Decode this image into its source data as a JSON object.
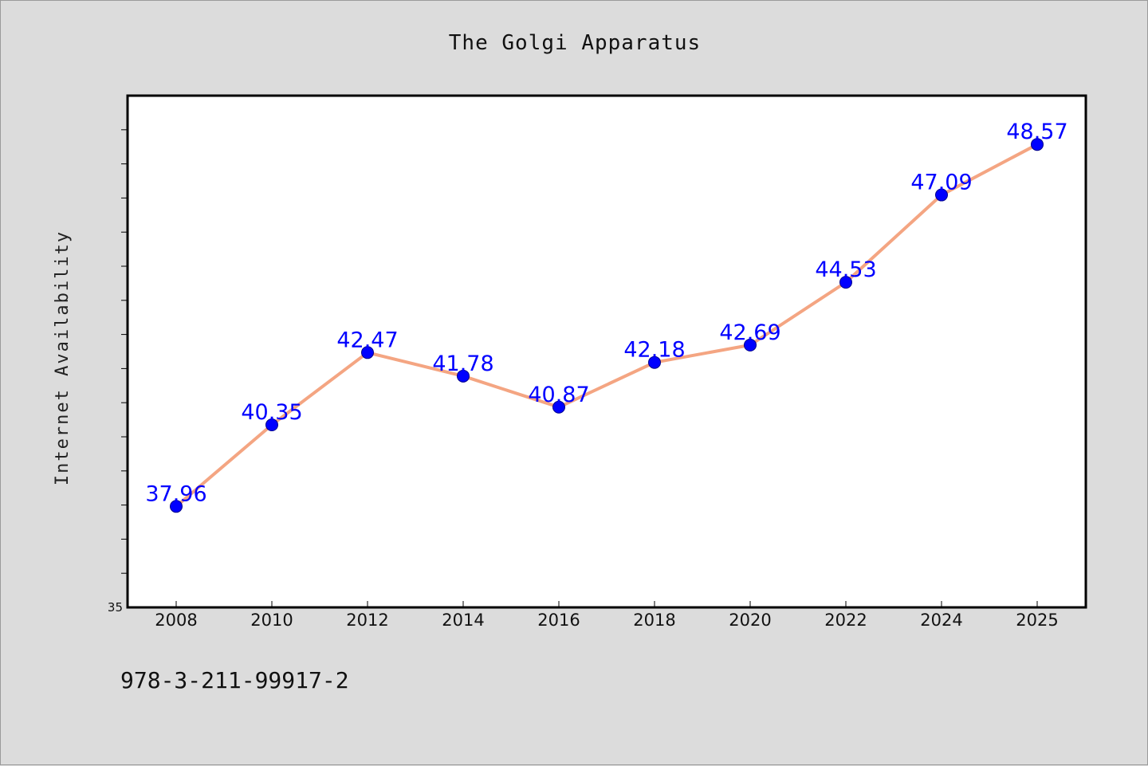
{
  "chart_data": {
    "type": "line",
    "title": "The Golgi Apparatus",
    "xlabel": "",
    "ylabel": "Internet Availability",
    "categories": [
      "2008",
      "2010",
      "2012",
      "2014",
      "2016",
      "2018",
      "2020",
      "2022",
      "2024",
      "2025"
    ],
    "series": [
      {
        "values": [
          37.96,
          40.35,
          42.47,
          41.78,
          40.87,
          42.18,
          42.69,
          44.53,
          47.09,
          48.57
        ]
      }
    ],
    "data_labels": [
      "37.96",
      "40.35",
      "42.47",
      "41.78",
      "40.87",
      "42.18",
      "42.69",
      "44.53",
      "47.09",
      "48.57"
    ],
    "ylim": [
      35,
      50
    ],
    "y_tick_label": "35",
    "y_minor_step": 1,
    "grid": false,
    "legend": "none"
  },
  "footer": {
    "isbn": "978-3-211-99917-2"
  },
  "colors": {
    "background": "#dcdcdc",
    "plot_background": "#ffffff",
    "line": "#f4a582",
    "marker": "#0000ff",
    "label": "#0000ff"
  }
}
